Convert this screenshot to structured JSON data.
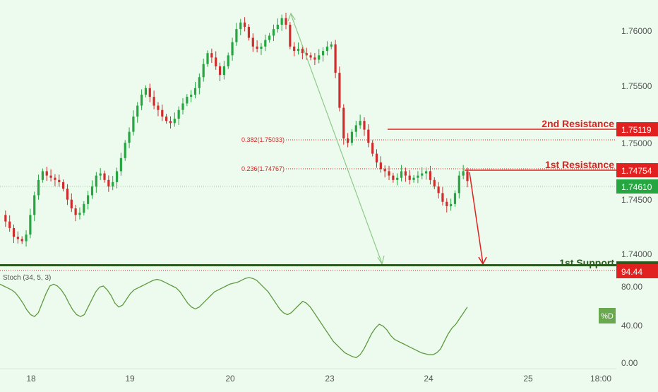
{
  "colors": {
    "background": "#edfbee",
    "up_candle": "#26a640",
    "down_candle": "#cf2d2d",
    "resistance": "#e0211f",
    "support": "#3f7a2c",
    "current_price": "#26a640",
    "trend_arrow": "#8fc98a",
    "stoch_line": "#5e9a3e",
    "axis_text": "#555555"
  },
  "price_axis": {
    "ticks": [
      "1.76000",
      "1.75500",
      "1.75000",
      "1.74500",
      "1.74000"
    ],
    "ylim": [
      1.7385,
      1.7624
    ]
  },
  "time_axis": {
    "ticks": [
      "18",
      "19",
      "20",
      "23",
      "24",
      "25",
      "18:00"
    ]
  },
  "levels": {
    "second_resistance": {
      "label": "2nd Resistance",
      "price": "1.75119"
    },
    "first_resistance": {
      "label": "1st Resistance",
      "price": "1.74754"
    },
    "first_support": {
      "label": "1st Support",
      "price": "94.44"
    },
    "current_price": "1.74610"
  },
  "fibonacci": {
    "f382": "0.382(1.75033)",
    "f236": "0.236(1.74767)"
  },
  "stochastic": {
    "label": "Stoch (34, 5, 3)",
    "ticks": [
      "80.00",
      "40.00",
      "0.00"
    ],
    "legend": "%D"
  },
  "chart_data": {
    "type": "candlestick",
    "title": "",
    "xlabel": "",
    "ylabel": "",
    "price_path": [
      1.743,
      1.7424,
      1.7418,
      1.741,
      1.7408,
      1.7406,
      1.7412,
      1.743,
      1.7448,
      1.7462,
      1.747,
      1.7466,
      1.7464,
      1.7462,
      1.746,
      1.7454,
      1.7444,
      1.7436,
      1.743,
      1.7432,
      1.744,
      1.7448,
      1.7456,
      1.7466,
      1.7468,
      1.7462,
      1.7456,
      1.746,
      1.747,
      1.7482,
      1.7496,
      1.7506,
      1.752,
      1.753,
      1.754,
      1.7546,
      1.7538,
      1.753,
      1.7526,
      1.752,
      1.7516,
      1.7514,
      1.7518,
      1.7526,
      1.7532,
      1.7538,
      1.754,
      1.7546,
      1.7556,
      1.7568,
      1.7578,
      1.7574,
      1.7566,
      1.7558,
      1.7566,
      1.7576,
      1.7588,
      1.76,
      1.7606,
      1.7602,
      1.7592,
      1.7584,
      1.7582,
      1.7584,
      1.759,
      1.7594,
      1.76,
      1.7604,
      1.761,
      1.7604,
      1.7584,
      1.758,
      1.7582,
      1.7578,
      1.7576,
      1.7574,
      1.7572,
      1.7576,
      1.758,
      1.7584,
      1.7586,
      1.756,
      1.7528,
      1.75,
      1.7496,
      1.7506,
      1.7512,
      1.7516,
      1.7508,
      1.7496,
      1.7486,
      1.7478,
      1.7472,
      1.747,
      1.7466,
      1.7462,
      1.7464,
      1.747,
      1.7466,
      1.7462,
      1.7464,
      1.7466,
      1.7468,
      1.747,
      1.7462,
      1.7456,
      1.745,
      1.7442,
      1.7438,
      1.744,
      1.745,
      1.7466,
      1.747,
      1.7461
    ],
    "stoch_d": [
      82,
      80,
      78,
      76,
      73,
      68,
      62,
      55,
      50,
      48,
      52,
      62,
      72,
      80,
      82,
      80,
      76,
      70,
      62,
      55,
      50,
      48,
      50,
      58,
      66,
      74,
      79,
      80,
      76,
      70,
      62,
      58,
      60,
      66,
      72,
      76,
      78,
      80,
      82,
      84,
      86,
      87,
      86,
      84,
      82,
      80,
      78,
      74,
      68,
      62,
      58,
      56,
      58,
      62,
      66,
      70,
      74,
      76,
      78,
      80,
      82,
      83,
      84,
      86,
      88,
      89,
      88,
      86,
      82,
      78,
      74,
      68,
      62,
      56,
      52,
      50,
      52,
      56,
      60,
      64,
      62,
      58,
      52,
      46,
      40,
      34,
      28,
      22,
      18,
      14,
      10,
      8,
      6,
      5,
      8,
      14,
      22,
      30,
      36,
      40,
      38,
      34,
      28,
      24,
      22,
      20,
      18,
      16,
      14,
      12,
      10,
      9,
      8,
      8,
      10,
      14,
      22,
      30,
      36,
      40,
      46,
      52,
      58
    ],
    "stoch_d_range": [
      0,
      100
    ]
  }
}
